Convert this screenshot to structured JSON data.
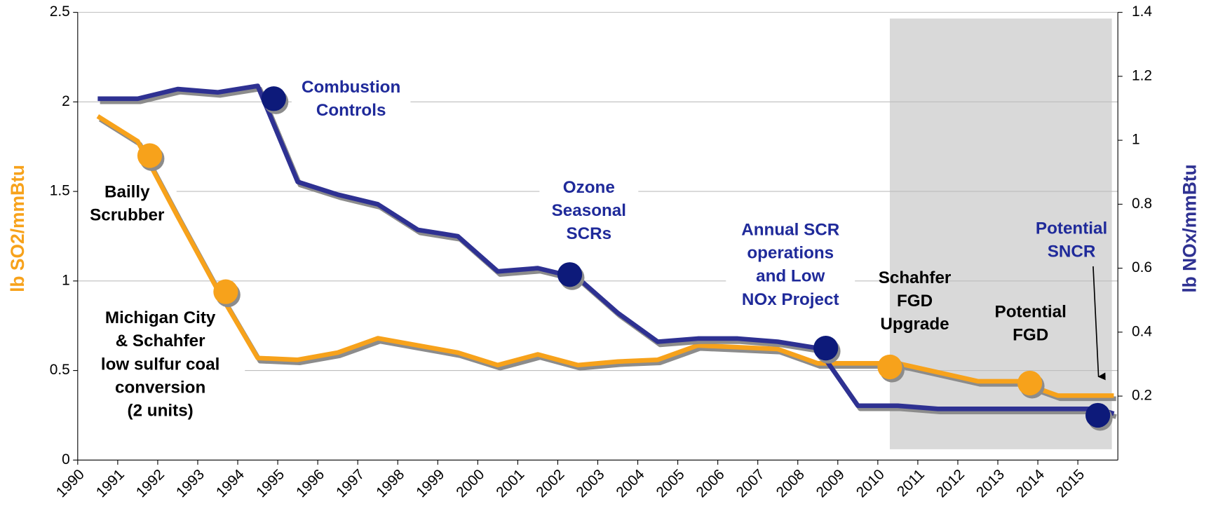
{
  "chart_data": {
    "type": "line",
    "y_label": "lb SO2/mmBtu",
    "y2_label": "lb NOx/mmBtu",
    "xlim": [
      1990,
      2016
    ],
    "xticks": [
      1990,
      1991,
      1992,
      1993,
      1994,
      1995,
      1996,
      1997,
      1998,
      1999,
      2000,
      2001,
      2002,
      2003,
      2004,
      2005,
      2006,
      2007,
      2008,
      2009,
      2010,
      2011,
      2012,
      2013,
      2014,
      2015
    ],
    "ylim": [
      0,
      2.5
    ],
    "yticks": [
      0,
      0.5,
      1,
      1.5,
      2,
      2.5
    ],
    "y2lim": [
      0,
      1.4
    ],
    "y2ticks": [
      0.2,
      0.4,
      0.6,
      0.8,
      1,
      1.2,
      1.4
    ],
    "grid": true,
    "shaded_region": [
      2010.3,
      2015.85
    ],
    "series": [
      {
        "color": "#f7a21b",
        "axis": "y",
        "style": "line",
        "x": [
          1990.5,
          1991.5,
          1992.5,
          1993.5,
          1994.5,
          1995.5,
          1996.5,
          1997.5,
          1998.5,
          1999.5,
          2000.5,
          2001.5,
          2002.5,
          2003.5,
          2004.5,
          2005.5,
          2006.5,
          2007.5,
          2008.5,
          2009.5,
          2010.5,
          2011.5,
          2012.5,
          2013.5,
          2014.5,
          2015.5,
          2015.9
        ],
        "values": [
          1.92,
          1.78,
          1.36,
          0.95,
          0.57,
          0.56,
          0.6,
          0.68,
          0.64,
          0.6,
          0.53,
          0.59,
          0.53,
          0.55,
          0.56,
          0.64,
          0.63,
          0.62,
          0.54,
          0.54,
          0.54,
          0.49,
          0.44,
          0.44,
          0.36,
          0.36,
          0.36
        ]
      },
      {
        "color": "#2e3192",
        "axis": "y2",
        "style": "line",
        "x": [
          1990.5,
          1991.5,
          1992.5,
          1993.5,
          1994.5,
          1995.5,
          1996.5,
          1997.5,
          1998.5,
          1999.5,
          2000.5,
          2001.5,
          2002.5,
          2003.5,
          2004.5,
          2005.5,
          2006.5,
          2007.5,
          2008.5,
          2009.5,
          2010.5,
          2011.5,
          2012.5,
          2013.5,
          2014.5,
          2015.5,
          2015.9
        ],
        "values": [
          1.13,
          1.13,
          1.16,
          1.15,
          1.17,
          0.87,
          0.83,
          0.8,
          0.72,
          0.7,
          0.59,
          0.6,
          0.57,
          0.46,
          0.37,
          0.38,
          0.38,
          0.37,
          0.35,
          0.17,
          0.17,
          0.16,
          0.16,
          0.16,
          0.16,
          0.16,
          0.145
        ]
      },
      {
        "color": "#f7a21b",
        "axis": "y",
        "style": "markers",
        "x": [
          1991.8,
          1993.7,
          2010.3,
          2013.8
        ],
        "values": [
          1.7,
          0.94,
          0.52,
          0.43
        ]
      },
      {
        "color": "#0d1a7a",
        "axis": "y2",
        "style": "markers",
        "x": [
          1994.9,
          2002.3,
          2008.7,
          2015.5
        ],
        "values": [
          1.13,
          0.58,
          0.35,
          0.14
        ]
      }
    ],
    "annotations": [
      {
        "text": [
          "Bailly",
          "Scrubber"
        ],
        "color": "#000000"
      },
      {
        "text": [
          "Michigan City",
          "& Schahfer",
          "low sulfur coal",
          "conversion",
          "(2 units)"
        ],
        "color": "#000000"
      },
      {
        "text": [
          "Combustion",
          "Controls"
        ],
        "color": "#1f2a9a"
      },
      {
        "text": [
          "Ozone",
          "Seasonal",
          "SCRs"
        ],
        "color": "#1f2a9a"
      },
      {
        "text": [
          "Annual SCR",
          "operations",
          "and Low",
          "NOx Project"
        ],
        "color": "#1f2a9a"
      },
      {
        "text": [
          "Schahfer",
          "FGD",
          "Upgrade"
        ],
        "color": "#000000"
      },
      {
        "text": [
          "Potential",
          "FGD"
        ],
        "color": "#000000"
      },
      {
        "text": [
          "Potential",
          "SNCR"
        ],
        "color": "#1f2a9a"
      }
    ]
  }
}
